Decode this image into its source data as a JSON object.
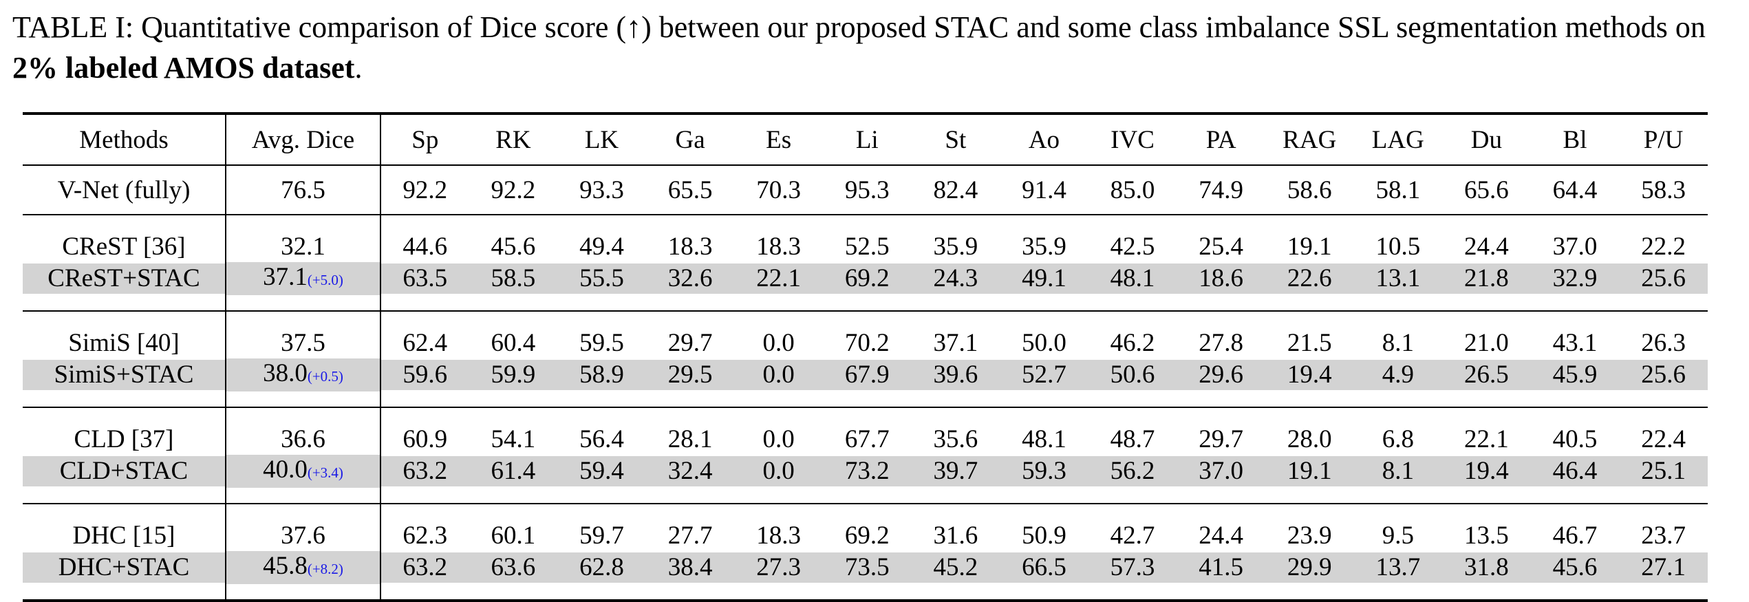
{
  "caption": {
    "prefix": "TABLE I: Quantitative comparison of Dice score (↑) between our proposed STAC and some class imbalance SSL segmentation methods on ",
    "bold": "2% labeled AMOS dataset",
    "suffix": "."
  },
  "table": {
    "columns": [
      "Methods",
      "Avg. Dice",
      "Sp",
      "RK",
      "LK",
      "Ga",
      "Es",
      "Li",
      "St",
      "Ao",
      "IVC",
      "PA",
      "RAG",
      "LAG",
      "Du",
      "Bl",
      "P/U"
    ],
    "reference": {
      "method": "V-Net (fully)",
      "avg": "76.5",
      "values": [
        "92.2",
        "92.2",
        "93.3",
        "65.5",
        "70.3",
        "95.3",
        "82.4",
        "91.4",
        "85.0",
        "74.9",
        "58.6",
        "58.1",
        "65.6",
        "64.4",
        "58.3"
      ]
    },
    "groups": [
      {
        "base": {
          "method": "CReST [36]",
          "avg": "32.1",
          "values": [
            "44.6",
            "45.6",
            "49.4",
            "18.3",
            "18.3",
            "52.5",
            "35.9",
            "35.9",
            "42.5",
            "25.4",
            "19.1",
            "10.5",
            "24.4",
            "37.0",
            "22.2"
          ]
        },
        "stac": {
          "method": "CReST+STAC",
          "avg": "37.1",
          "delta": "(+5.0)",
          "values": [
            "63.5",
            "58.5",
            "55.5",
            "32.6",
            "22.1",
            "69.2",
            "24.3",
            "49.1",
            "48.1",
            "18.6",
            "22.6",
            "13.1",
            "21.8",
            "32.9",
            "25.6"
          ]
        }
      },
      {
        "base": {
          "method": "SimiS [40]",
          "avg": "37.5",
          "values": [
            "62.4",
            "60.4",
            "59.5",
            "29.7",
            "0.0",
            "70.2",
            "37.1",
            "50.0",
            "46.2",
            "27.8",
            "21.5",
            "8.1",
            "21.0",
            "43.1",
            "26.3"
          ]
        },
        "stac": {
          "method": "SimiS+STAC",
          "avg": "38.0",
          "delta": "(+0.5)",
          "values": [
            "59.6",
            "59.9",
            "58.9",
            "29.5",
            "0.0",
            "67.9",
            "39.6",
            "52.7",
            "50.6",
            "29.6",
            "19.4",
            "4.9",
            "26.5",
            "45.9",
            "25.6"
          ]
        }
      },
      {
        "base": {
          "method": "CLD [37]",
          "avg": "36.6",
          "values": [
            "60.9",
            "54.1",
            "56.4",
            "28.1",
            "0.0",
            "67.7",
            "35.6",
            "48.1",
            "48.7",
            "29.7",
            "28.0",
            "6.8",
            "22.1",
            "40.5",
            "22.4"
          ]
        },
        "stac": {
          "method": "CLD+STAC",
          "avg": "40.0",
          "delta": "(+3.4)",
          "values": [
            "63.2",
            "61.4",
            "59.4",
            "32.4",
            "0.0",
            "73.2",
            "39.7",
            "59.3",
            "56.2",
            "37.0",
            "19.1",
            "8.1",
            "19.4",
            "46.4",
            "25.1"
          ]
        }
      },
      {
        "base": {
          "method": "DHC [15]",
          "avg": "37.6",
          "values": [
            "62.3",
            "60.1",
            "59.7",
            "27.7",
            "18.3",
            "69.2",
            "31.6",
            "50.9",
            "42.7",
            "24.4",
            "23.9",
            "9.5",
            "13.5",
            "46.7",
            "23.7"
          ]
        },
        "stac": {
          "method": "DHC+STAC",
          "avg": "45.8",
          "delta": "(+8.2)",
          "values": [
            "63.2",
            "63.6",
            "62.8",
            "38.4",
            "27.3",
            "73.5",
            "45.2",
            "66.5",
            "57.3",
            "41.5",
            "29.9",
            "13.7",
            "31.8",
            "45.6",
            "27.1"
          ]
        }
      }
    ]
  }
}
